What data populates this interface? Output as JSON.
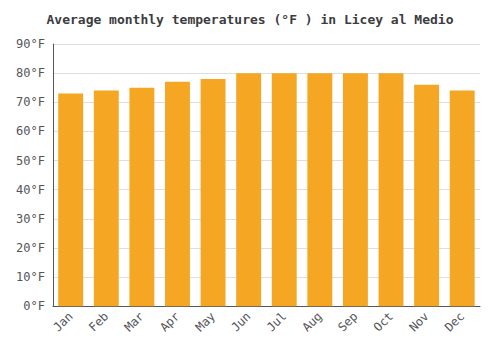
{
  "chart_data": {
    "type": "bar",
    "title": "Average monthly temperatures (°F ) in Licey al Medio",
    "categories": [
      "Jan",
      "Feb",
      "Mar",
      "Apr",
      "May",
      "Jun",
      "Jul",
      "Aug",
      "Sep",
      "Oct",
      "Nov",
      "Dec"
    ],
    "values": [
      73,
      74,
      75,
      77,
      78,
      80,
      80,
      80,
      80,
      80,
      76,
      74
    ],
    "color": "#F5A623",
    "ylim": [
      0,
      90
    ],
    "yticks": [
      {
        "value": 0,
        "label": "0°F"
      },
      {
        "value": 10,
        "label": "10°F"
      },
      {
        "value": 20,
        "label": "20°F"
      },
      {
        "value": 30,
        "label": "30°F"
      },
      {
        "value": 40,
        "label": "40°F"
      },
      {
        "value": 50,
        "label": "50°F"
      },
      {
        "value": 60,
        "label": "60°F"
      },
      {
        "value": 70,
        "label": "70°F"
      },
      {
        "value": 80,
        "label": "80°F"
      },
      {
        "value": 90,
        "label": "90°F"
      }
    ],
    "grid": true
  }
}
